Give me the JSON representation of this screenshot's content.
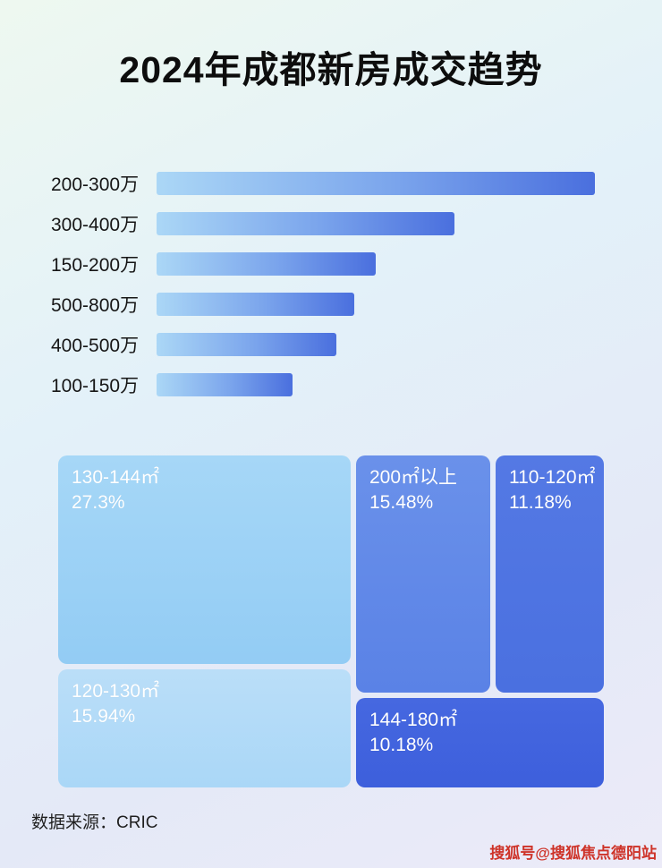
{
  "page": {
    "title": "2024年成都新房成交趋势",
    "source_label": "数据来源：CRIC",
    "watermark": "搜狐号@搜狐焦点德阳站"
  },
  "chart_data": [
    {
      "type": "bar",
      "orientation": "horizontal",
      "title": "2024年成都新房成交趋势",
      "categories": [
        "200-300万",
        "300-400万",
        "150-200万",
        "500-800万",
        "400-500万",
        "100-150万"
      ],
      "values": [
        100,
        68,
        50,
        45,
        41,
        31
      ],
      "value_note": "relative bar lengths in % of longest bar; no numeric labels are shown in the image",
      "xlabel": "",
      "ylabel": "",
      "grid": false,
      "legend": false
    },
    {
      "type": "treemap",
      "items": [
        {
          "label": "130-144㎡",
          "percent": "27.3%",
          "value": 27.3
        },
        {
          "label": "200㎡以上",
          "percent": "15.48%",
          "value": 15.48
        },
        {
          "label": "110-120㎡",
          "percent": "11.18%",
          "value": 11.18
        },
        {
          "label": "120-130㎡",
          "percent": "15.94%",
          "value": 15.94
        },
        {
          "label": "144-180㎡",
          "percent": "10.18%",
          "value": 10.18
        }
      ],
      "legend": false
    }
  ],
  "colors": {
    "bar_gradient_start": "#abd7f6",
    "bar_gradient_end": "#4a6fde",
    "block_130_144": "#9fd2f5",
    "block_200_plus": "#6189e8",
    "block_110_120": "#4d74e2",
    "block_120_130": "#b5dcf8",
    "block_144_180": "#3f63de",
    "watermark_red": "#ce3329",
    "title_text": "#0d0d0d"
  }
}
